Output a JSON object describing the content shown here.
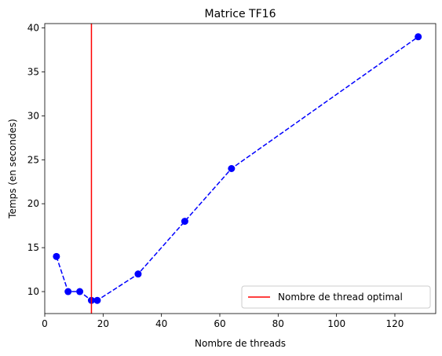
{
  "chart_data": {
    "type": "line",
    "title": "Matrice TF16",
    "xlabel": "Nombre de threads",
    "ylabel": "Temps (en secondes)",
    "xlim": [
      0,
      134
    ],
    "ylim": [
      7.5,
      40.5
    ],
    "xticks": [
      0,
      20,
      40,
      60,
      80,
      100,
      120
    ],
    "yticks": [
      10,
      15,
      20,
      25,
      30,
      35,
      40
    ],
    "grid": false,
    "legend_position": "bottom-right",
    "series": [
      {
        "style": "dashed-line-with-markers",
        "color": "#0000ff",
        "x": [
          4,
          8,
          12,
          16,
          18,
          32,
          48,
          64,
          128
        ],
        "y": [
          14,
          10,
          10,
          9,
          9,
          12,
          18,
          24,
          39
        ]
      }
    ],
    "reference_lines": [
      {
        "orientation": "vertical",
        "x": 16,
        "color": "#ff0000",
        "label": "Nombre de thread optimal"
      }
    ]
  }
}
